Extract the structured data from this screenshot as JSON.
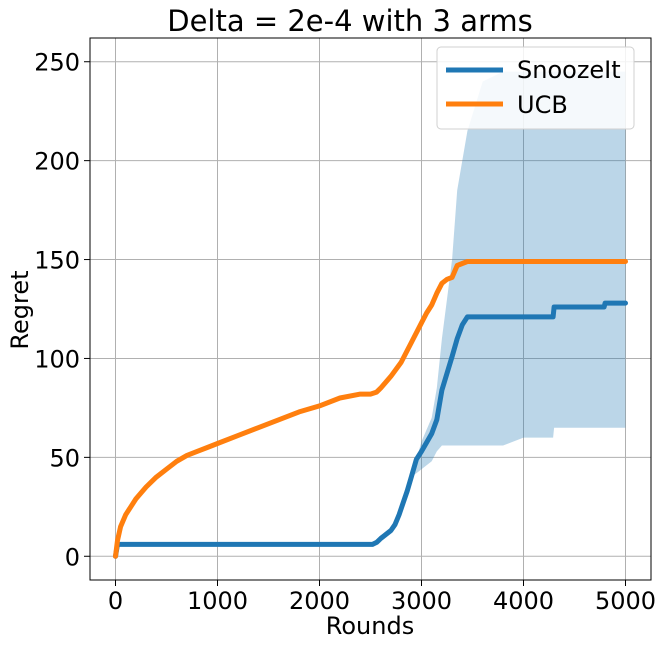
{
  "chart_data": {
    "type": "line",
    "title": "Delta = 2e-4 with 3 arms",
    "xlabel": "Rounds",
    "ylabel": "Regret",
    "xlim": [
      -250,
      5250
    ],
    "ylim": [
      -12,
      262
    ],
    "xticks": [
      0,
      1000,
      2000,
      3000,
      4000,
      5000
    ],
    "yticks": [
      0,
      50,
      100,
      150,
      200,
      250
    ],
    "grid": true,
    "legend_position": "upper right",
    "series": [
      {
        "name": "SnoozeIt",
        "color": "#1f77b4",
        "x": [
          0,
          20,
          100,
          500,
          1000,
          1500,
          2000,
          2400,
          2520,
          2560,
          2600,
          2650,
          2700,
          2740,
          2780,
          2820,
          2860,
          2900,
          2950,
          3000,
          3100,
          3150,
          3200,
          3300,
          3350,
          3400,
          3450,
          3600,
          3800,
          4000,
          4200,
          4290,
          4300,
          4500,
          4790,
          4800,
          5000
        ],
        "y": [
          0,
          6,
          6,
          6,
          6,
          6,
          6,
          6,
          6,
          7,
          9,
          11,
          13,
          16,
          21,
          27,
          33,
          40,
          49,
          53,
          62,
          69,
          84,
          101,
          110,
          117,
          121,
          121,
          121,
          121,
          121,
          121,
          126,
          126,
          126,
          128,
          128
        ],
        "band_lower": [
          0,
          6,
          6,
          6,
          6,
          6,
          6,
          6,
          6,
          7,
          9,
          11,
          13,
          16,
          21,
          27,
          33,
          40,
          42,
          44,
          48,
          53,
          56,
          56,
          56,
          56,
          56,
          56,
          56,
          60,
          60,
          60,
          65,
          65,
          65,
          65,
          65
        ],
        "band_upper": [
          0,
          6,
          6,
          6,
          6,
          6,
          6,
          6,
          6,
          7,
          9,
          11,
          13,
          16,
          21,
          27,
          33,
          40,
          49,
          58,
          70,
          85,
          110,
          150,
          185,
          200,
          215,
          240,
          245,
          245,
          245,
          245,
          245,
          245,
          245,
          245,
          245
        ],
        "band_color": "#1f77b4"
      },
      {
        "name": "UCB",
        "color": "#ff7f0e",
        "x": [
          0,
          20,
          50,
          100,
          150,
          200,
          300,
          400,
          500,
          600,
          700,
          800,
          900,
          1000,
          1200,
          1400,
          1600,
          1800,
          2000,
          2200,
          2400,
          2500,
          2560,
          2600,
          2700,
          2800,
          2900,
          3000,
          3050,
          3100,
          3150,
          3200,
          3250,
          3300,
          3350,
          3400,
          3450,
          3500,
          4000,
          5000
        ],
        "y": [
          0,
          8,
          15,
          21,
          25,
          29,
          35,
          40,
          44,
          48,
          51,
          53,
          55,
          57,
          61,
          65,
          69,
          73,
          76,
          80,
          82,
          82,
          83,
          85,
          91,
          98,
          108,
          118,
          123,
          127,
          133,
          138,
          140,
          141,
          147,
          148,
          149,
          149,
          149,
          149
        ]
      }
    ]
  }
}
